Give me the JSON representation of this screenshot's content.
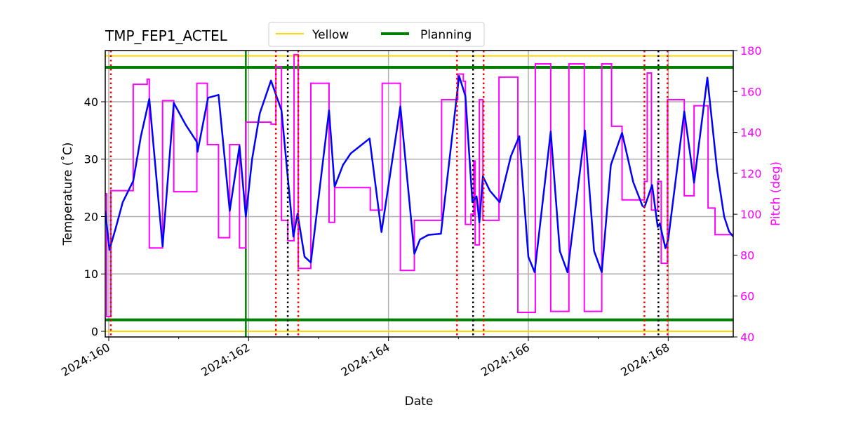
{
  "chart_data": {
    "type": "line",
    "title": "TMP_FEP1_ACTEL",
    "xlabel": "Date",
    "ylabel": "Temperature (˚C)",
    "y2label": "Pitch (deg)",
    "xlim": [
      159.95,
      168.93
    ],
    "ylim": [
      -0.98,
      48.93
    ],
    "y2lim": [
      40,
      180
    ],
    "x_ticks": [
      160,
      162,
      164,
      166,
      168
    ],
    "x_tick_labels": [
      "2024:160",
      "2024:162",
      "2024:164",
      "2024:166",
      "2024:168"
    ],
    "x_minor_ticks": [
      161,
      163,
      165,
      167
    ],
    "y_ticks": [
      0,
      10,
      20,
      30,
      40
    ],
    "y2_ticks": [
      40,
      60,
      80,
      100,
      120,
      140,
      160,
      180
    ],
    "grid": true,
    "legend": {
      "placement": "top-center (above plot)",
      "entries": [
        {
          "label": "Yellow",
          "color": "#ffd700"
        },
        {
          "label": "Planning",
          "color": "#008000"
        }
      ]
    },
    "hlines": [
      {
        "name": "Yellow",
        "values": [
          48,
          0
        ],
        "color": "#ffd700"
      },
      {
        "name": "Planning",
        "values": [
          46,
          2
        ],
        "color": "#008000"
      }
    ],
    "vlines": {
      "green": {
        "x": [
          161.96
        ],
        "color": "#008000",
        "style": "solid"
      },
      "red": {
        "x": [
          160.03,
          162.39,
          162.71,
          164.98,
          165.36,
          167.66,
          167.99
        ],
        "color": "#ff0000",
        "style": "dotted"
      },
      "black": {
        "x": [
          162.56,
          165.21,
          167.86
        ],
        "color": "#000000",
        "style": "dotted"
      }
    },
    "series": [
      {
        "axis": "left",
        "color": "#0000ff",
        "points": [
          [
            159.95,
            21
          ],
          [
            160.01,
            14.2
          ],
          [
            160.1,
            18
          ],
          [
            160.2,
            22.5
          ],
          [
            160.35,
            26.2
          ],
          [
            160.46,
            34
          ],
          [
            160.58,
            40.5
          ],
          [
            160.77,
            14.8
          ],
          [
            160.93,
            39.8
          ],
          [
            161.1,
            36
          ],
          [
            161.26,
            33
          ],
          [
            161.27,
            31.3
          ],
          [
            161.42,
            40.7
          ],
          [
            161.57,
            41.2
          ],
          [
            161.73,
            21
          ],
          [
            161.87,
            32.3
          ],
          [
            161.96,
            20
          ],
          [
            162.05,
            30
          ],
          [
            162.16,
            38
          ],
          [
            162.32,
            43.7
          ],
          [
            162.47,
            38.5
          ],
          [
            162.64,
            16.5
          ],
          [
            162.7,
            20.5
          ],
          [
            162.8,
            13
          ],
          [
            162.89,
            12
          ],
          [
            163.15,
            38.5
          ],
          [
            163.23,
            25.2
          ],
          [
            163.35,
            29
          ],
          [
            163.46,
            31
          ],
          [
            163.73,
            33.6
          ],
          [
            163.9,
            17.3
          ],
          [
            164.17,
            39.2
          ],
          [
            164.37,
            13.5
          ],
          [
            164.45,
            16
          ],
          [
            164.57,
            16.8
          ],
          [
            164.75,
            17
          ],
          [
            165.01,
            44.5
          ],
          [
            165.1,
            41
          ],
          [
            165.2,
            22.5
          ],
          [
            165.26,
            23.5
          ],
          [
            165.3,
            19
          ],
          [
            165.35,
            27
          ],
          [
            165.45,
            24.5
          ],
          [
            165.59,
            22.5
          ],
          [
            165.75,
            30.5
          ],
          [
            165.87,
            34
          ],
          [
            166,
            13
          ],
          [
            166.09,
            10.3
          ],
          [
            166.32,
            34.8
          ],
          [
            166.45,
            14
          ],
          [
            166.56,
            10.3
          ],
          [
            166.81,
            35
          ],
          [
            166.94,
            14
          ],
          [
            167.05,
            10.3
          ],
          [
            167.18,
            29
          ],
          [
            167.34,
            34.6
          ],
          [
            167.5,
            26
          ],
          [
            167.63,
            21.9
          ],
          [
            167.66,
            21.6
          ],
          [
            167.77,
            25.5
          ],
          [
            167.85,
            18.2
          ],
          [
            167.88,
            18.8
          ],
          [
            167.96,
            14.5
          ],
          [
            168,
            16
          ],
          [
            168.23,
            38.3
          ],
          [
            168.37,
            25.9
          ],
          [
            168.56,
            44.2
          ],
          [
            168.7,
            28
          ],
          [
            168.8,
            20
          ],
          [
            168.87,
            17.4
          ],
          [
            168.93,
            16.5
          ]
        ]
      },
      {
        "axis": "right",
        "color": "#ff00ff",
        "step": true,
        "end": 168.93,
        "steps": [
          [
            159.95,
            110
          ],
          [
            159.97,
            50
          ],
          [
            160.03,
            111.5
          ],
          [
            160.35,
            163.5
          ],
          [
            160.55,
            166
          ],
          [
            160.58,
            83.5
          ],
          [
            160.77,
            155.5
          ],
          [
            160.93,
            111
          ],
          [
            161.26,
            164
          ],
          [
            161.41,
            134
          ],
          [
            161.57,
            88.5
          ],
          [
            161.73,
            134
          ],
          [
            161.87,
            83.5
          ],
          [
            161.96,
            145
          ],
          [
            162.32,
            144
          ],
          [
            162.39,
            172
          ],
          [
            162.47,
            97
          ],
          [
            162.56,
            87
          ],
          [
            162.65,
            178
          ],
          [
            162.71,
            73.5
          ],
          [
            162.89,
            164
          ],
          [
            163.15,
            96
          ],
          [
            163.23,
            113
          ],
          [
            163.74,
            102
          ],
          [
            163.91,
            164
          ],
          [
            164.17,
            72.5
          ],
          [
            164.37,
            97
          ],
          [
            164.76,
            156
          ],
          [
            164.99,
            168.5
          ],
          [
            165.07,
            165
          ],
          [
            165.1,
            95
          ],
          [
            165.18,
            100
          ],
          [
            165.22,
            126
          ],
          [
            165.24,
            85
          ],
          [
            165.3,
            156
          ],
          [
            165.35,
            97
          ],
          [
            165.58,
            167
          ],
          [
            165.85,
            52
          ],
          [
            166.1,
            173.5
          ],
          [
            166.32,
            52.5
          ],
          [
            166.58,
            173.5
          ],
          [
            166.8,
            52.5
          ],
          [
            167.05,
            173.5
          ],
          [
            167.19,
            143
          ],
          [
            167.34,
            107
          ],
          [
            167.66,
            116
          ],
          [
            167.7,
            169
          ],
          [
            167.76,
            102
          ],
          [
            167.85,
            116
          ],
          [
            167.9,
            76
          ],
          [
            167.99,
            156
          ],
          [
            168.23,
            109
          ],
          [
            168.37,
            153
          ],
          [
            168.57,
            103
          ],
          [
            168.67,
            90
          ]
        ]
      }
    ]
  }
}
